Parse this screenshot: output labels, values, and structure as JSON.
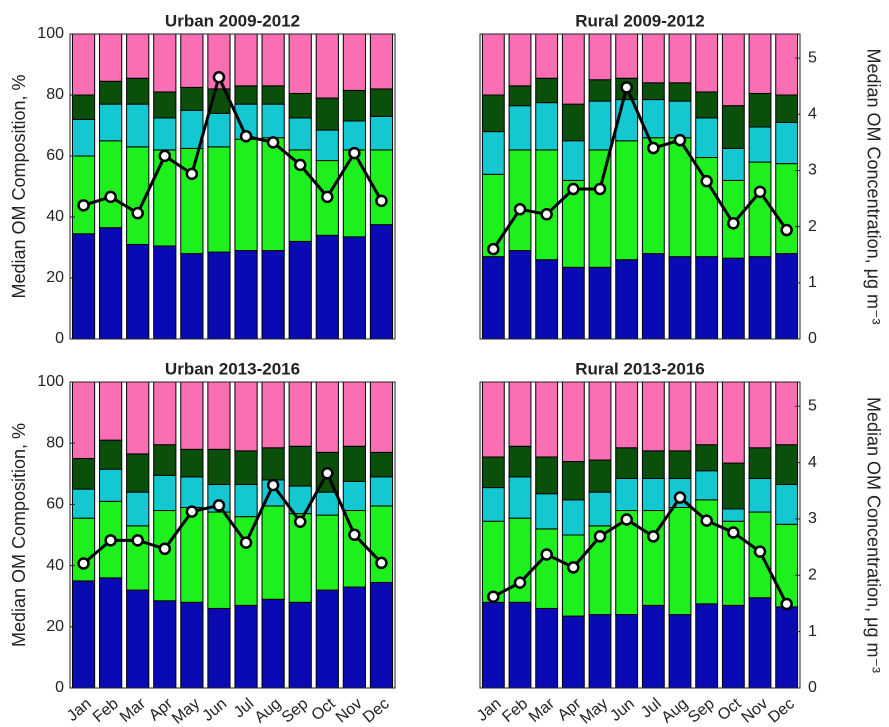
{
  "chart_data": [
    {
      "type": "bar",
      "stacked": true,
      "title": "Urban 2009-2012",
      "ylabel": "Median OM Composition, %",
      "ylim": [
        0,
        100
      ],
      "yticks": [
        0,
        20,
        40,
        60,
        80,
        100
      ],
      "y2lim": [
        0,
        5.43
      ],
      "series": [
        {
          "color": "#0a0ab4",
          "values": [
            34.5,
            36.5,
            31,
            30.5,
            28,
            28.5,
            29,
            29,
            32,
            34,
            33.5,
            37.5
          ]
        },
        {
          "color": "#1ef01e",
          "values": [
            25.5,
            28.5,
            32,
            31.5,
            34.5,
            34.5,
            36.5,
            37,
            30,
            24.5,
            28.5,
            24.5
          ]
        },
        {
          "color": "#14c8d2",
          "values": [
            12,
            12,
            14,
            10.5,
            12.5,
            11,
            11.5,
            11,
            10.5,
            10,
            9.5,
            11
          ]
        },
        {
          "color": "#0a500a",
          "values": [
            8,
            7.5,
            8.5,
            8.5,
            7.5,
            8,
            6,
            6,
            8,
            10.5,
            10,
            9
          ]
        },
        {
          "color": "#fa6eb4",
          "values": [
            20,
            15.5,
            14.5,
            19,
            17.5,
            18,
            17,
            17,
            19.5,
            21,
            18.5,
            18
          ]
        },
        {
          "type": "line",
          "axis": "y2",
          "color": "#000000",
          "values": [
            2.38,
            2.53,
            2.24,
            3.26,
            2.94,
            4.66,
            3.61,
            3.5,
            3.1,
            2.53,
            3.31,
            2.46
          ]
        }
      ]
    },
    {
      "type": "bar",
      "stacked": true,
      "title": "Rural 2009-2012",
      "y2label": "Median OM Concentration, μg m⁻³",
      "ylim": [
        0,
        100
      ],
      "y2lim": [
        0,
        5.43
      ],
      "y2ticks": [
        0,
        1,
        2,
        3,
        4,
        5
      ],
      "series": [
        {
          "color": "#0a0ab4",
          "values": [
            27,
            29,
            26,
            23.5,
            23.5,
            26,
            28,
            27,
            27,
            26.5,
            27,
            28
          ]
        },
        {
          "color": "#1ef01e",
          "values": [
            27,
            33,
            36,
            28.5,
            38.5,
            39,
            38,
            39,
            32.5,
            25.5,
            31,
            29.5
          ]
        },
        {
          "color": "#14c8d2",
          "values": [
            14,
            14.5,
            15.5,
            13,
            16,
            13.5,
            12.5,
            12,
            13,
            10.5,
            11.5,
            13.5
          ]
        },
        {
          "color": "#0a500a",
          "values": [
            12,
            6.5,
            8,
            12,
            7,
            7,
            5.5,
            6,
            8.5,
            14,
            11,
            9
          ]
        },
        {
          "color": "#fa6eb4",
          "values": [
            20,
            17,
            14.5,
            23,
            15,
            14.5,
            16,
            16,
            19,
            23.5,
            19.5,
            20
          ]
        },
        {
          "type": "line",
          "axis": "y2",
          "color": "#000000",
          "values": [
            1.6,
            2.31,
            2.22,
            2.67,
            2.67,
            4.48,
            3.4,
            3.54,
            2.81,
            2.06,
            2.62,
            1.94
          ]
        }
      ]
    },
    {
      "type": "bar",
      "stacked": true,
      "title": "Urban 2013-2016",
      "ylabel": "Median OM Composition, %",
      "categories": [
        "Jan",
        "Feb",
        "Mar",
        "Apr",
        "May",
        "Jun",
        "Jul",
        "Aug",
        "Sep",
        "Oct",
        "Nov",
        "Dec"
      ],
      "ylim": [
        0,
        100
      ],
      "yticks": [
        0,
        20,
        40,
        60,
        80,
        100
      ],
      "y2lim": [
        0,
        5.43
      ],
      "series": [
        {
          "color": "#0a0ab4",
          "values": [
            35,
            36,
            32,
            28.5,
            28,
            26,
            27,
            29,
            28,
            32,
            33,
            34.5
          ]
        },
        {
          "color": "#1ef01e",
          "values": [
            20.5,
            25,
            21,
            29.5,
            31,
            31.5,
            29,
            30.5,
            29,
            24.5,
            25,
            25
          ]
        },
        {
          "color": "#14c8d2",
          "values": [
            9.5,
            10.5,
            11,
            11.5,
            10,
            9,
            10.5,
            8.5,
            9,
            7.5,
            9.5,
            9.5
          ]
        },
        {
          "color": "#0a500a",
          "values": [
            10,
            9.5,
            12.5,
            10,
            9,
            11.5,
            11,
            10.5,
            13,
            13,
            11.5,
            8
          ]
        },
        {
          "color": "#fa6eb4",
          "values": [
            25,
            19,
            23.5,
            20.5,
            22,
            22,
            22.5,
            21.5,
            21,
            23,
            21,
            23
          ]
        },
        {
          "type": "line",
          "axis": "y2",
          "color": "#000000",
          "values": [
            2.21,
            2.62,
            2.62,
            2.47,
            3.13,
            3.24,
            2.58,
            3.6,
            2.95,
            3.81,
            2.72,
            2.22
          ]
        }
      ]
    },
    {
      "type": "bar",
      "stacked": true,
      "title": "Rural 2013-2016",
      "y2label": "Median OM Concentration, μg m⁻³",
      "categories": [
        "Jan",
        "Feb",
        "Mar",
        "Apr",
        "May",
        "Jun",
        "Jul",
        "Aug",
        "Sep",
        "Oct",
        "Nov",
        "Dec"
      ],
      "ylim": [
        0,
        100
      ],
      "y2lim": [
        0,
        5.43
      ],
      "y2ticks": [
        0,
        1,
        2,
        3,
        4,
        5
      ],
      "series": [
        {
          "color": "#0a0ab4",
          "values": [
            28,
            28,
            26,
            23.5,
            24,
            24,
            27,
            24,
            27.5,
            27,
            29.5,
            26.5
          ]
        },
        {
          "color": "#1ef01e",
          "values": [
            26.5,
            27.5,
            26,
            26.5,
            29,
            34,
            31,
            35,
            34,
            27.5,
            28,
            27
          ]
        },
        {
          "color": "#14c8d2",
          "values": [
            11,
            13.5,
            11.5,
            11.5,
            11,
            10.5,
            10.5,
            9.5,
            9.5,
            4,
            11,
            13
          ]
        },
        {
          "color": "#0a500a",
          "values": [
            10,
            10,
            12,
            12.5,
            10.5,
            10,
            9,
            9,
            8.5,
            15,
            10,
            13
          ]
        },
        {
          "color": "#fa6eb4",
          "values": [
            24.5,
            21,
            24.5,
            26,
            25.5,
            21.5,
            22.5,
            22.5,
            20.5,
            26.5,
            21.5,
            20.5
          ]
        },
        {
          "type": "line",
          "axis": "y2",
          "color": "#000000",
          "values": [
            1.62,
            1.87,
            2.37,
            2.14,
            2.69,
            2.99,
            2.69,
            3.38,
            2.97,
            2.76,
            2.42,
            1.49
          ]
        }
      ]
    }
  ]
}
